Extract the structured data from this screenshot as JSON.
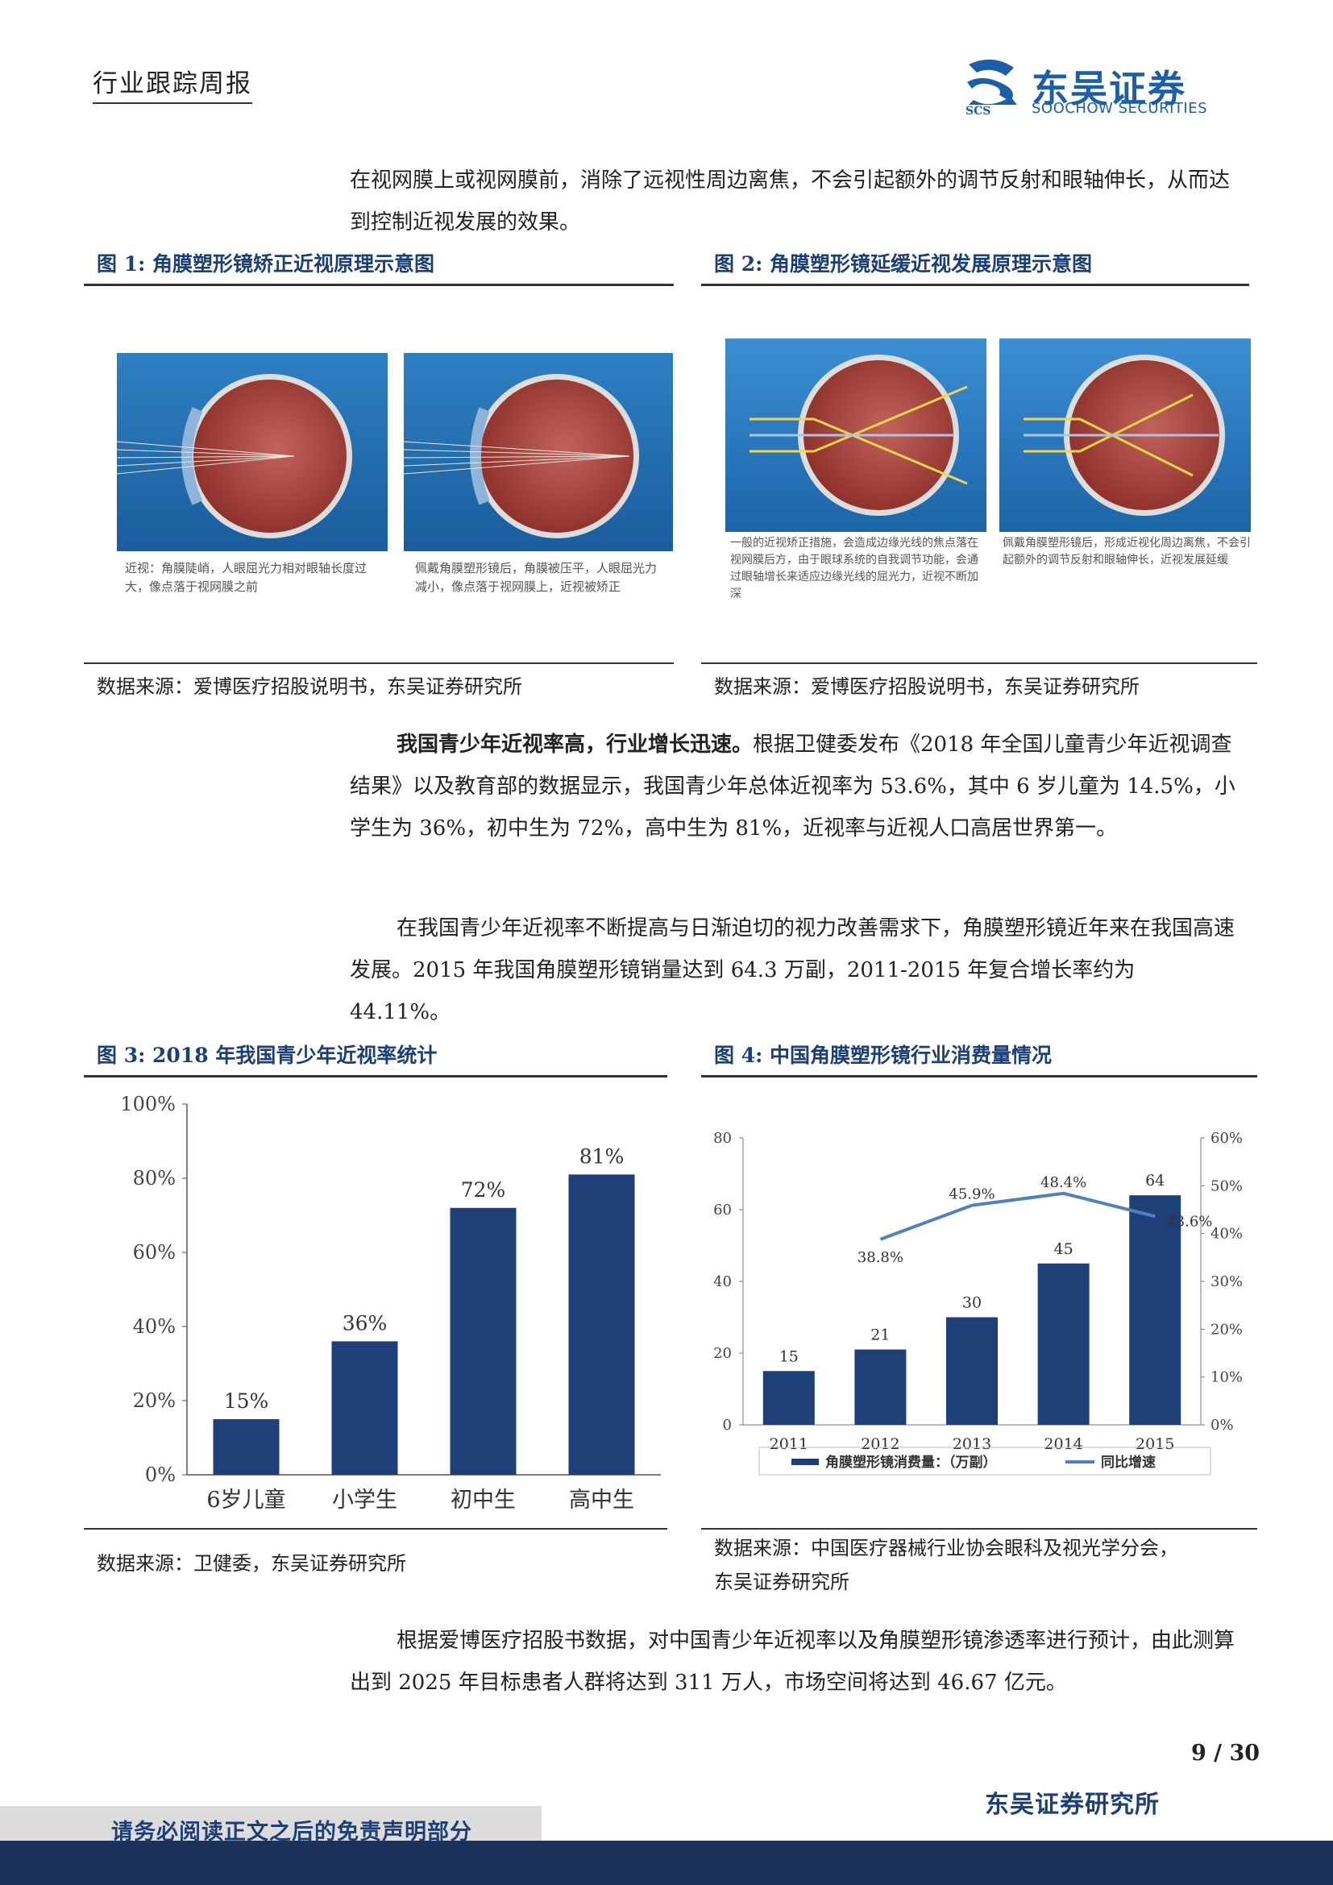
{
  "header": {
    "report_type": "行业跟踪周报",
    "logo_cn": "东吴证券",
    "logo_en": "SOOCHOW SECURITIES",
    "logo_mark": "SCS"
  },
  "paragraphs": {
    "p1": "在视网膜上或视网膜前，消除了远视性周边离焦，不会引起额外的调节反射和眼轴伸长，从而达到控制近视发展的效果。",
    "p2_bold": "我国青少年近视率高，行业增长迅速。",
    "p2_rest": "根据卫健委发布《2018 年全国儿童青少年近视调查结果》以及教育部的数据显示，我国青少年总体近视率为 53.6%，其中 6 岁儿童为 14.5%，小学生为 36%，初中生为 72%，高中生为 81%，近视率与近视人口高居世界第一。",
    "p3": "在我国青少年近视率不断提高与日渐迫切的视力改善需求下，角膜塑形镜近年来在我国高速发展。2015 年我国角膜塑形镜销量达到 64.3 万副，2011-2015 年复合增长率约为 44.11%。",
    "p4": "根据爱博医疗招股书数据，对中国青少年近视率以及角膜塑形镜渗透率进行预计，由此测算出到 2025 年目标患者人群将达到 311 万人，市场空间将达到 46.67 亿元。"
  },
  "figures": {
    "fig1": {
      "title": "图 1:  角膜塑形镜矫正近视原理示意图",
      "caption_left": "近视：角膜陡峭，人眼屈光力相对眼轴长度过大，像点落于视网膜之前",
      "caption_right": "佩戴角膜塑形镜后，角膜被压平，人眼屈光力减小，像点落于视网膜上，近视被矫正",
      "source": "数据来源：爱博医疗招股说明书，东吴证券研究所"
    },
    "fig2": {
      "title": "图 2:  角膜塑形镜延缓近视发展原理示意图",
      "caption_left": "一般的近视矫正措施，会造成边缘光线的焦点落在视网膜后方，由于眼球系统的自我调节功能，会通过眼轴增长来适应边缘光线的屈光力，近视不断加深",
      "caption_right": "佩戴角膜塑形镜后，形成近视化周边离焦，不会引起额外的调节反射和眼轴伸长，近视发展延缓",
      "source": "数据来源：爱博医疗招股说明书，东吴证券研究所"
    },
    "fig3": {
      "title": "图 3:  2018 年我国青少年近视率统计",
      "source": "数据来源：卫健委，东吴证券研究所"
    },
    "fig4": {
      "title": "图 4:  中国角膜塑形镜行业消费量情况",
      "source_line1": "数据来源：中国医疗器械行业协会眼科及视光学分会，",
      "source_line2": "东吴证券研究所"
    }
  },
  "chart_data": [
    {
      "type": "bar",
      "categories": [
        "6岁儿童",
        "小学生",
        "初中生",
        "高中生"
      ],
      "values": [
        15,
        36,
        72,
        81
      ],
      "data_labels": [
        "15%",
        "36%",
        "72%",
        "81%"
      ],
      "ylim": [
        0,
        100
      ],
      "yticks": [
        "0%",
        "20%",
        "40%",
        "60%",
        "80%",
        "100%"
      ],
      "color": "#1f3f78",
      "grid": false
    },
    {
      "type": "bar",
      "categories": [
        "2011",
        "2012",
        "2013",
        "2014",
        "2015"
      ],
      "series": [
        {
          "name": "角膜塑形镜消费量：（万副）",
          "values": [
            15,
            21,
            30,
            45,
            64
          ],
          "data_labels": [
            "15",
            "21",
            "30",
            "45",
            "64"
          ],
          "color": "#1f3f78",
          "axis": "left"
        },
        {
          "name": "同比增速",
          "type": "line",
          "values": [
            null,
            38.8,
            45.9,
            48.4,
            43.6
          ],
          "data_labels": [
            "",
            "38.8%",
            "45.9%",
            "48.4%",
            "43.6%"
          ],
          "color": "#4f81bd",
          "axis": "right"
        }
      ],
      "ylim": [
        0,
        80
      ],
      "yticks": [
        "0",
        "20",
        "40",
        "60",
        "80"
      ],
      "y2lim": [
        0,
        60
      ],
      "y2ticks": [
        "0%",
        "10%",
        "20%",
        "30%",
        "40%",
        "50%",
        "60%"
      ],
      "legend": "bottom"
    }
  ],
  "footer": {
    "page_number": "9 / 30",
    "org": "东吴证券研究所",
    "disclaimer": "请务必阅读正文之后的免责声明部分"
  }
}
